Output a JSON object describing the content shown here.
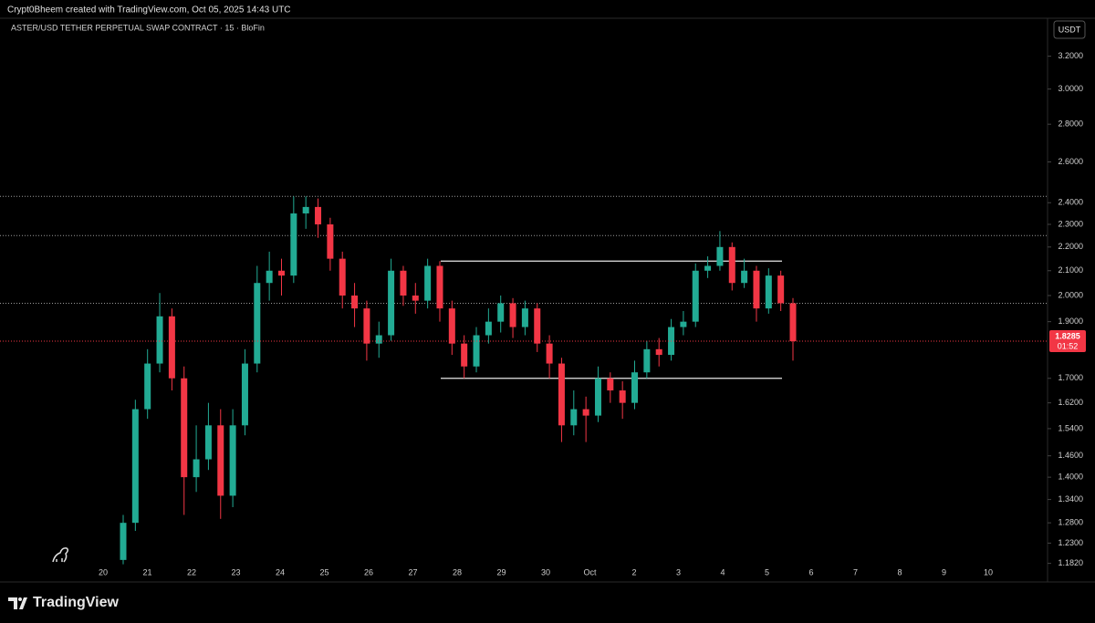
{
  "header": "Crypt0Bheem created with TradingView.com, Oct 05, 2025 14:43 UTC",
  "chart_data": {
    "type": "candlestick",
    "symbol": "ASTER/USD TETHER PERPETUAL SWAP CONTRACT · 15 · BloFin",
    "currency": "USDT",
    "countdown": "01:52",
    "x_labels": [
      "20",
      "21",
      "22",
      "23",
      "24",
      "25",
      "26",
      "27",
      "28",
      "29",
      "30",
      "Oct",
      "2",
      "3",
      "4",
      "5",
      "6",
      "7",
      "8",
      "9",
      "10"
    ],
    "open": [
      1.19,
      1.28,
      1.6,
      1.75,
      1.92,
      1.7,
      1.4,
      1.45,
      1.55,
      1.35,
      1.55,
      1.75,
      2.05,
      2.1,
      2.08,
      2.35,
      2.38,
      2.3,
      2.15,
      2.0,
      1.95,
      1.82,
      1.85,
      2.1,
      2.0,
      1.98,
      2.12,
      1.95,
      1.82,
      1.74,
      1.85,
      1.9,
      1.97,
      1.88,
      1.95,
      1.82,
      1.75,
      1.55,
      1.6,
      1.58,
      1.7,
      1.66,
      1.62,
      1.72,
      1.8,
      1.78,
      1.88,
      1.9,
      2.1,
      2.12,
      2.2,
      2.05,
      2.1,
      1.95,
      2.08,
      1.97
    ],
    "high": [
      1.3,
      1.63,
      1.8,
      2.01,
      1.95,
      1.74,
      1.55,
      1.62,
      1.6,
      1.6,
      1.8,
      2.12,
      2.18,
      2.15,
      2.43,
      2.43,
      2.42,
      2.33,
      2.18,
      2.05,
      1.98,
      1.9,
      2.15,
      2.12,
      2.05,
      2.15,
      2.14,
      1.98,
      1.85,
      1.88,
      1.95,
      2.0,
      1.99,
      1.98,
      1.97,
      1.85,
      1.77,
      1.66,
      1.64,
      1.74,
      1.72,
      1.69,
      1.76,
      1.83,
      1.84,
      1.91,
      1.94,
      2.13,
      2.16,
      2.27,
      2.22,
      2.15,
      2.12,
      2.11,
      2.1,
      1.99
    ],
    "low": [
      1.18,
      1.26,
      1.57,
      1.72,
      1.66,
      1.3,
      1.36,
      1.42,
      1.29,
      1.32,
      1.52,
      1.72,
      1.98,
      2.0,
      2.05,
      2.28,
      2.24,
      2.1,
      1.95,
      1.88,
      1.76,
      1.77,
      1.83,
      1.96,
      1.93,
      1.95,
      1.9,
      1.78,
      1.7,
      1.72,
      1.82,
      1.86,
      1.84,
      1.85,
      1.79,
      1.7,
      1.5,
      1.52,
      1.5,
      1.56,
      1.62,
      1.57,
      1.6,
      1.7,
      1.74,
      1.76,
      1.85,
      1.88,
      2.07,
      2.1,
      2.02,
      2.03,
      1.9,
      1.93,
      1.94,
      1.76
    ],
    "close": [
      1.28,
      1.6,
      1.75,
      1.92,
      1.7,
      1.4,
      1.45,
      1.55,
      1.35,
      1.55,
      1.75,
      2.05,
      2.1,
      2.08,
      2.35,
      2.38,
      2.3,
      2.15,
      2.0,
      1.95,
      1.82,
      1.85,
      2.1,
      2.0,
      1.98,
      2.12,
      1.95,
      1.82,
      1.74,
      1.85,
      1.9,
      1.97,
      1.88,
      1.95,
      1.82,
      1.75,
      1.55,
      1.6,
      1.58,
      1.7,
      1.66,
      1.62,
      1.72,
      1.8,
      1.78,
      1.88,
      1.9,
      2.1,
      2.12,
      2.2,
      2.05,
      2.1,
      1.95,
      2.08,
      1.97,
      1.8285
    ],
    "up_color": "#22ab94",
    "down_color": "#f23645",
    "dotted_levels": [
      2.43,
      2.25,
      1.97
    ],
    "range_lines": [
      2.14,
      1.7
    ],
    "log_scale": true,
    "ylim": [
      1.177,
      3.46
    ],
    "yticks": [
      {
        "value": 3.2,
        "label": "3.2000"
      },
      {
        "value": 3.0,
        "label": "3.0000"
      },
      {
        "value": 2.8,
        "label": "2.8000"
      },
      {
        "value": 2.6,
        "label": "2.6000"
      },
      {
        "value": 2.4,
        "label": "2.4000"
      },
      {
        "value": 2.3,
        "label": "2.3000"
      },
      {
        "value": 2.2,
        "label": "2.2000"
      },
      {
        "value": 2.1,
        "label": "2.1000"
      },
      {
        "value": 2.0,
        "label": "2.0000"
      },
      {
        "value": 1.9,
        "label": "1.9000"
      },
      {
        "value": 1.7,
        "label": "1.7000"
      },
      {
        "value": 1.62,
        "label": "1.6200"
      },
      {
        "value": 1.54,
        "label": "1.5400"
      },
      {
        "value": 1.46,
        "label": "1.4600"
      },
      {
        "value": 1.4,
        "label": "1.4000"
      },
      {
        "value": 1.34,
        "label": "1.3400"
      },
      {
        "value": 1.28,
        "label": "1.2800"
      },
      {
        "value": 1.23,
        "label": "1.2300"
      },
      {
        "value": 1.182,
        "label": "1.1820"
      }
    ]
  },
  "footer": {
    "brand": "TradingView"
  }
}
